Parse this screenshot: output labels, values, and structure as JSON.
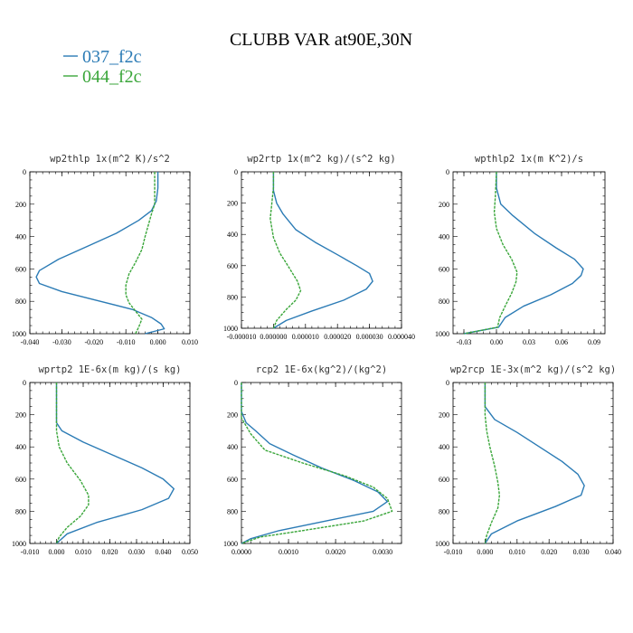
{
  "figure": {
    "title": "CLUBB VAR at90E,30N",
    "legend": [
      {
        "label": "037_f2c",
        "color": "#2b7bb5"
      },
      {
        "label": "044_f2c",
        "color": "#3aa63a"
      }
    ]
  },
  "chart_data": [
    {
      "type": "line",
      "title": "wp2thlp   1x(m^2 K)/s^2",
      "xlim": [
        -0.04,
        0.01
      ],
      "ylim": [
        1000,
        0
      ],
      "xticks": [
        "-0.040",
        "-0.030",
        "-0.020",
        "-0.010",
        "0.000",
        "0.010"
      ],
      "xtick_values": [
        -0.04,
        -0.03,
        -0.02,
        -0.01,
        0.0,
        0.01
      ],
      "yticks": [
        0,
        200,
        400,
        600,
        800,
        1000
      ],
      "series": [
        {
          "name": "037_f2c",
          "points": [
            [
              0.0,
              0
            ],
            [
              0.0,
              100
            ],
            [
              -0.0005,
              180
            ],
            [
              -0.002,
              240
            ],
            [
              -0.006,
              300
            ],
            [
              -0.013,
              380
            ],
            [
              -0.022,
              460
            ],
            [
              -0.031,
              540
            ],
            [
              -0.037,
              610
            ],
            [
              -0.038,
              650
            ],
            [
              -0.037,
              690
            ],
            [
              -0.03,
              740
            ],
            [
              -0.018,
              800
            ],
            [
              -0.008,
              850
            ],
            [
              -0.002,
              900
            ],
            [
              0.001,
              940
            ],
            [
              0.002,
              970
            ],
            [
              -0.004,
              1000
            ]
          ]
        },
        {
          "name": "044_f2c",
          "points": [
            [
              -0.001,
              0
            ],
            [
              -0.001,
              150
            ],
            [
              -0.001,
              200
            ],
            [
              -0.002,
              260
            ],
            [
              -0.003,
              330
            ],
            [
              -0.004,
              400
            ],
            [
              -0.005,
              480
            ],
            [
              -0.007,
              560
            ],
            [
              -0.009,
              630
            ],
            [
              -0.01,
              700
            ],
            [
              -0.01,
              760
            ],
            [
              -0.009,
              810
            ],
            [
              -0.007,
              860
            ],
            [
              -0.005,
              910
            ],
            [
              -0.006,
              960
            ],
            [
              -0.007,
              1000
            ]
          ]
        }
      ]
    },
    {
      "type": "line",
      "title": "wp2rtp   1x(m^2 kg)/(s^2 kg)",
      "xlim": [
        -1e-05,
        4e-05
      ],
      "ylim": [
        1000,
        0
      ],
      "xticks": [
        "-0.000010",
        "0.000000",
        "0.000010",
        "0.000020",
        "0.000030",
        "0.000040"
      ],
      "xtick_values": [
        -1e-05,
        0.0,
        1e-05,
        2e-05,
        3e-05,
        4e-05
      ],
      "yticks": [
        0,
        200,
        400,
        600,
        800,
        1000
      ],
      "series": [
        {
          "name": "037_f2c",
          "points": [
            [
              0.0,
              0
            ],
            [
              0.0,
              120
            ],
            [
              1e-06,
              200
            ],
            [
              3e-06,
              270
            ],
            [
              7e-06,
              370
            ],
            [
              1.3e-05,
              450
            ],
            [
              2e-05,
              530
            ],
            [
              2.6e-05,
              600
            ],
            [
              3e-05,
              650
            ],
            [
              3.1e-05,
              700
            ],
            [
              2.9e-05,
              750
            ],
            [
              2.2e-05,
              820
            ],
            [
              1.2e-05,
              890
            ],
            [
              4e-06,
              950
            ],
            [
              0.0,
              1000
            ]
          ]
        },
        {
          "name": "044_f2c",
          "points": [
            [
              0.0,
              0
            ],
            [
              0.0,
              100
            ],
            [
              -5e-07,
              200
            ],
            [
              -1e-06,
              300
            ],
            [
              0.0,
              420
            ],
            [
              2e-06,
              520
            ],
            [
              4.5e-06,
              600
            ],
            [
              7.5e-06,
              700
            ],
            [
              8.5e-06,
              760
            ],
            [
              7e-06,
              820
            ],
            [
              4e-06,
              880
            ],
            [
              1e-06,
              950
            ],
            [
              0.0,
              1000
            ]
          ]
        }
      ]
    },
    {
      "type": "line",
      "title": "wpthlp2   1x(m K^2)/s",
      "xlim": [
        -0.04,
        0.1
      ],
      "ylim": [
        1000,
        0
      ],
      "xticks": [
        "-0.03",
        "0.00",
        "0.03",
        "0.06",
        "0.09"
      ],
      "xtick_values": [
        -0.03,
        0.0,
        0.03,
        0.06,
        0.09
      ],
      "yticks": [
        0,
        200,
        400,
        600,
        800,
        1000
      ],
      "series": [
        {
          "name": "037_f2c",
          "points": [
            [
              0.0,
              0
            ],
            [
              0.0,
              100
            ],
            [
              0.004,
              200
            ],
            [
              0.015,
              270
            ],
            [
              0.035,
              380
            ],
            [
              0.055,
              470
            ],
            [
              0.072,
              540
            ],
            [
              0.08,
              600
            ],
            [
              0.078,
              640
            ],
            [
              0.07,
              690
            ],
            [
              0.05,
              760
            ],
            [
              0.025,
              830
            ],
            [
              0.008,
              900
            ],
            [
              0.002,
              960
            ],
            [
              -0.03,
              1000
            ]
          ]
        },
        {
          "name": "044_f2c",
          "points": [
            [
              0.0,
              0
            ],
            [
              -0.001,
              150
            ],
            [
              -0.002,
              250
            ],
            [
              0.0,
              350
            ],
            [
              0.006,
              450
            ],
            [
              0.014,
              540
            ],
            [
              0.019,
              620
            ],
            [
              0.018,
              680
            ],
            [
              0.014,
              750
            ],
            [
              0.008,
              830
            ],
            [
              0.003,
              900
            ],
            [
              0.001,
              960
            ],
            [
              -0.03,
              1000
            ]
          ]
        }
      ]
    },
    {
      "type": "line",
      "title": "wprtp2   1E-6x(m kg)/(s kg)",
      "xlim": [
        -0.01,
        0.05
      ],
      "ylim": [
        1000,
        0
      ],
      "xticks": [
        "-0.010",
        "0.000",
        "0.010",
        "0.020",
        "0.030",
        "0.040",
        "0.050"
      ],
      "xtick_values": [
        -0.01,
        0.0,
        0.01,
        0.02,
        0.03,
        0.04,
        0.05
      ],
      "yticks": [
        0,
        200,
        400,
        600,
        800,
        1000
      ],
      "series": [
        {
          "name": "037_f2c",
          "points": [
            [
              0.0,
              0
            ],
            [
              0.0,
              250
            ],
            [
              0.002,
              300
            ],
            [
              0.01,
              370
            ],
            [
              0.021,
              450
            ],
            [
              0.032,
              530
            ],
            [
              0.04,
              600
            ],
            [
              0.044,
              660
            ],
            [
              0.042,
              720
            ],
            [
              0.032,
              790
            ],
            [
              0.015,
              870
            ],
            [
              0.004,
              940
            ],
            [
              0.0,
              1000
            ]
          ]
        },
        {
          "name": "044_f2c",
          "points": [
            [
              0.0,
              0
            ],
            [
              0.0,
              300
            ],
            [
              0.001,
              400
            ],
            [
              0.004,
              500
            ],
            [
              0.009,
              610
            ],
            [
              0.012,
              700
            ],
            [
              0.012,
              760
            ],
            [
              0.009,
              830
            ],
            [
              0.004,
              900
            ],
            [
              0.001,
              960
            ],
            [
              0.0,
              1000
            ]
          ]
        }
      ]
    },
    {
      "type": "line",
      "title": "rcp2   1E-6x(kg^2)/(kg^2)",
      "xlim": [
        0.0,
        0.0034
      ],
      "ylim": [
        1000,
        0
      ],
      "xticks": [
        "0.0000",
        "0.0010",
        "0.0020",
        "0.0030"
      ],
      "xtick_values": [
        0.0,
        0.001,
        0.002,
        0.003
      ],
      "yticks": [
        0,
        200,
        400,
        600,
        800,
        1000
      ],
      "series": [
        {
          "name": "037_f2c",
          "points": [
            [
              0.0,
              0
            ],
            [
              0.0,
              180
            ],
            [
              0.0001,
              250
            ],
            [
              0.0003,
              300
            ],
            [
              0.0006,
              380
            ],
            [
              0.0011,
              450
            ],
            [
              0.0017,
              530
            ],
            [
              0.0024,
              610
            ],
            [
              0.0029,
              680
            ],
            [
              0.0031,
              740
            ],
            [
              0.0028,
              800
            ],
            [
              0.0018,
              860
            ],
            [
              0.0008,
              920
            ],
            [
              0.0002,
              970
            ],
            [
              0.0,
              1000
            ]
          ]
        },
        {
          "name": "044_f2c",
          "points": [
            [
              0.0,
              0
            ],
            [
              0.0,
              220
            ],
            [
              0.0002,
              320
            ],
            [
              0.0005,
              420
            ],
            [
              0.0013,
              500
            ],
            [
              0.0022,
              580
            ],
            [
              0.0028,
              650
            ],
            [
              0.0031,
              720
            ],
            [
              0.0032,
              800
            ],
            [
              0.0026,
              860
            ],
            [
              0.0013,
              920
            ],
            [
              0.0004,
              960
            ],
            [
              0.0,
              1000
            ]
          ]
        }
      ]
    },
    {
      "type": "line",
      "title": "wp2rcp   1E-3x(m^2 kg)/(s^2 kg)",
      "xlim": [
        -0.01,
        0.04
      ],
      "ylim": [
        1000,
        0
      ],
      "xticks": [
        "-0.010",
        "0.000",
        "0.010",
        "0.020",
        "0.030",
        "0.040"
      ],
      "xtick_values": [
        -0.01,
        0.0,
        0.01,
        0.02,
        0.03,
        0.04
      ],
      "yticks": [
        0,
        200,
        400,
        600,
        800,
        1000
      ],
      "series": [
        {
          "name": "037_f2c",
          "points": [
            [
              0.0,
              0
            ],
            [
              0.0,
              150
            ],
            [
              0.003,
              230
            ],
            [
              0.01,
              310
            ],
            [
              0.017,
              400
            ],
            [
              0.024,
              490
            ],
            [
              0.029,
              570
            ],
            [
              0.031,
              640
            ],
            [
              0.03,
              700
            ],
            [
              0.022,
              770
            ],
            [
              0.01,
              860
            ],
            [
              0.002,
              940
            ],
            [
              0.0,
              1000
            ]
          ]
        },
        {
          "name": "044_f2c",
          "points": [
            [
              0.0,
              0
            ],
            [
              0.0,
              200
            ],
            [
              0.0005,
              300
            ],
            [
              0.0015,
              400
            ],
            [
              0.003,
              520
            ],
            [
              0.004,
              620
            ],
            [
              0.0045,
              700
            ],
            [
              0.004,
              780
            ],
            [
              0.002,
              870
            ],
            [
              0.0005,
              950
            ],
            [
              0.0,
              1000
            ]
          ]
        }
      ]
    }
  ]
}
